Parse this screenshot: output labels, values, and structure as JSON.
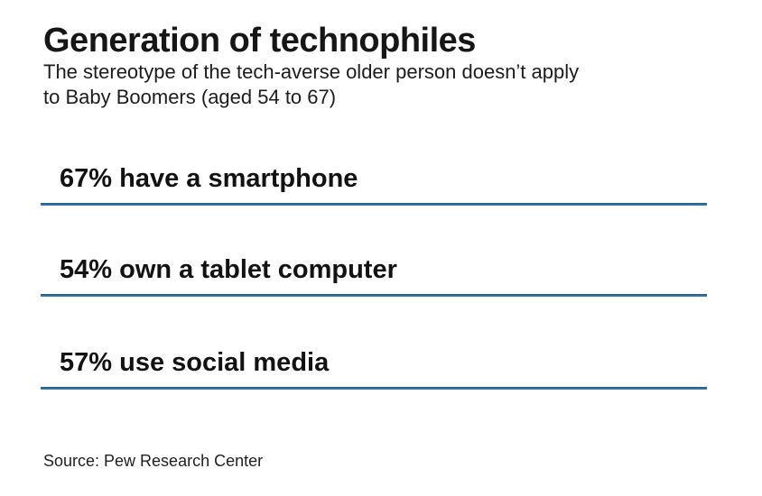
{
  "header": {
    "title": "Generation of technophiles",
    "subtitle": "The stereotype of the tech-averse older person doesn’t apply to Baby Boomers (aged 54 to 67)",
    "subtitle_lines": [
      "The stereotype of the tech-averse older person doesn’t apply",
      "to Baby Boomers (aged 54 to 67)"
    ]
  },
  "stats": [
    {
      "value": 67,
      "unit": "%",
      "label": "67% have a smartphone"
    },
    {
      "value": 54,
      "unit": "%",
      "label": "54% own a tablet computer"
    },
    {
      "value": 57,
      "unit": "%",
      "label": "57% use social media"
    }
  ],
  "footer": {
    "source": "Source: Pew Research Center"
  },
  "colors": {
    "accent_line": "#2e6f9f",
    "accent_line_dark_edge": "#24587e",
    "accent_line_light_edge": "#3f82b2",
    "text": "#161616",
    "background": "#ffffff"
  },
  "chart_data": {
    "type": "table",
    "title": "Generation of technophiles",
    "subtitle": "The stereotype of the tech-averse older person doesn’t apply to Baby Boomers (aged 54 to 67)",
    "categories": [
      "have a smartphone",
      "own a tablet computer",
      "use social media"
    ],
    "values": [
      67,
      54,
      57
    ],
    "unit": "%",
    "population": "Baby Boomers (aged 54 to 67)",
    "source": "Source: Pew Research Center",
    "legend_position": "none",
    "grid": false
  }
}
